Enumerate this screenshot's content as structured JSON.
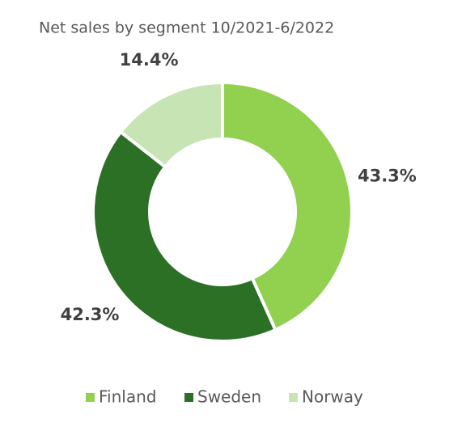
{
  "chart_data": {
    "type": "donut",
    "title": "Net sales by segment 10/2021-6/2022",
    "categories": [
      "Finland",
      "Sweden",
      "Norway"
    ],
    "values": [
      43.3,
      42.3,
      14.4
    ],
    "value_labels": [
      "43.3%",
      "42.3%",
      "14.4%"
    ],
    "colors": [
      "#92d050",
      "#2b7024",
      "#c7e5b4"
    ],
    "legend": "bottom"
  }
}
